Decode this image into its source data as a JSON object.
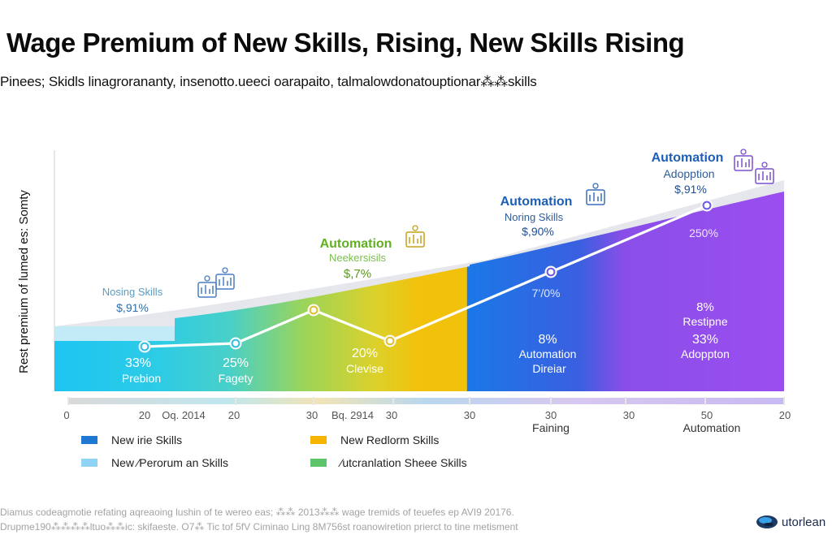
{
  "header": {
    "title": "Wage Premium of New Skills,  Rising, New Skills Rising",
    "subtitle": "Pinees; Skidls linagrorananty, insenotto.ueeci oarapaito, talmalowdonatouptionar⁂⁂skills"
  },
  "chart_data": {
    "type": "area",
    "ylabel": "Rest premium of  lumed es: Somty",
    "series": [
      {
        "name": "",
        "style": "line-with-markers",
        "x": [
          0,
          1,
          2,
          3,
          4,
          5,
          6
        ],
        "values": [
          33,
          35,
          50,
          40,
          62,
          72,
          80
        ]
      }
    ],
    "band_colors": [
      "#22c6ee",
      "#5fd3d8",
      "#a6d64a",
      "#f2c10c",
      "#1f6fe6",
      "#8a4ee8"
    ],
    "x_tick_labels": [
      "0",
      "20",
      "Oq. 2014",
      "20",
      "30",
      "Bq. 2914",
      "30",
      "30",
      "30",
      "30",
      "50",
      "20"
    ],
    "x_category_labels": [
      "Faining",
      "Automation"
    ],
    "annotations": [
      {
        "head": "",
        "label": "Nosing Skills",
        "value": "$,91%",
        "inner_pct": "33%",
        "inner_label": "Prebion"
      },
      {
        "head": "",
        "label": "",
        "value": "",
        "inner_pct": "25%",
        "inner_label": "Fagety"
      },
      {
        "head": "Automation",
        "label": "Neekersisils",
        "value": "$,7%",
        "inner_pct": "20%",
        "inner_label": "Clevise"
      },
      {
        "head": "Automation",
        "label": "Noring Skills",
        "value": "$,90%",
        "inner_pct": "7’/0%",
        "inner_label": "",
        "inner_pct2": "8%",
        "inner_label2": "Automation",
        "inner_label3": "Direiar"
      },
      {
        "head": "Automation",
        "label": "Adopption",
        "value": "$,91%",
        "inner_pct": "250%",
        "inner_label": "",
        "inner_pct2": "8%",
        "inner_label2": "Restipne",
        "inner_pct3": "33%",
        "inner_label3": "Adoppton"
      }
    ],
    "legend": [
      {
        "label": "New irie Skills",
        "color": "#1f78d1"
      },
      {
        "label": "New Redlorm Skills",
        "color": "#f4b400"
      },
      {
        "label": "New ⁄Perorum an Skills",
        "color": "#8fd3f5"
      },
      {
        "label": "⁄utcranlation Sheee Skills",
        "color": "#5ec46a"
      }
    ]
  },
  "footer": {
    "line1": "Diamus codeagmotie refating aqreaoing lushin of te wereo eas; ⁂⁂ 2013⁂⁂ wage tremids of teuefes ep AVI9 20176.",
    "line2": "Drupme190⁂⁂⁂⁂ltuo⁂⁂ic: skifaeste. O7⁂ Tic tof 5fV Ciminao Ling 8M756st roanowiretion prierct to tine metisment"
  },
  "brand": {
    "name": "utorlean",
    "icon": "brand-logo-icon"
  }
}
